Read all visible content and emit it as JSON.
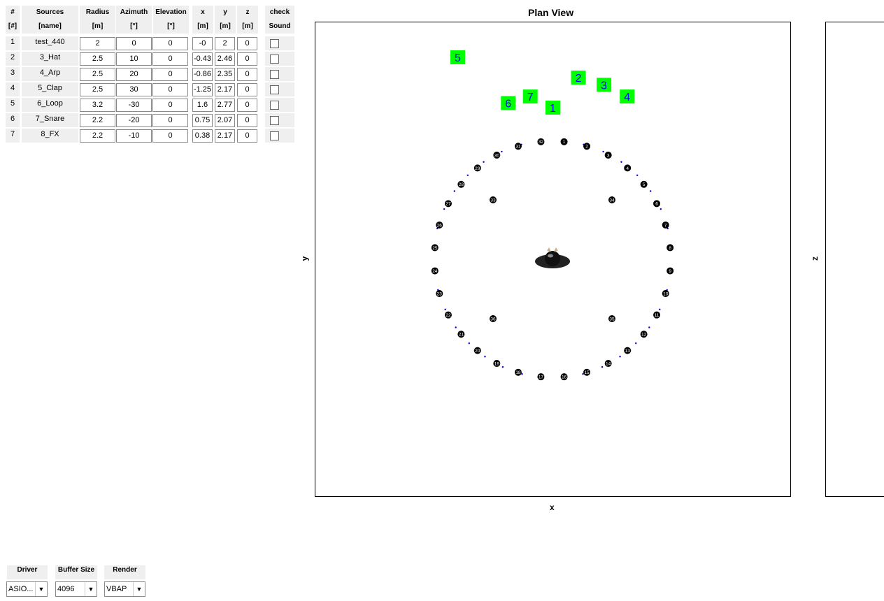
{
  "table": {
    "headers": [
      {
        "top": "#",
        "bottom": "[#]"
      },
      {
        "top": "Sources",
        "bottom": "[name]"
      },
      {
        "top": "Radius",
        "bottom": "[m]"
      },
      {
        "top": "Azimuth",
        "bottom": "[°]"
      },
      {
        "top": "Elevation",
        "bottom": "[°]"
      },
      {
        "top": "x",
        "bottom": "[m]"
      },
      {
        "top": "y",
        "bottom": "[m]"
      },
      {
        "top": "z",
        "bottom": "[m]"
      },
      {
        "top": "check",
        "bottom": "Sound"
      }
    ],
    "rows": [
      {
        "num": "1",
        "name": "test_440",
        "radius": "2",
        "azimuth": "0",
        "elevation": "0",
        "x": "-0",
        "y": "2",
        "z": "0",
        "check": false
      },
      {
        "num": "2",
        "name": "3_Hat",
        "radius": "2.5",
        "azimuth": "10",
        "elevation": "0",
        "x": "-0.43",
        "y": "2.46",
        "z": "0",
        "check": false
      },
      {
        "num": "3",
        "name": "4_Arp",
        "radius": "2.5",
        "azimuth": "20",
        "elevation": "0",
        "x": "-0.86",
        "y": "2.35",
        "z": "0",
        "check": false
      },
      {
        "num": "4",
        "name": "5_Clap",
        "radius": "2.5",
        "azimuth": "30",
        "elevation": "0",
        "x": "-1.25",
        "y": "2.17",
        "z": "0",
        "check": false
      },
      {
        "num": "5",
        "name": "6_Loop",
        "radius": "3.2",
        "azimuth": "-30",
        "elevation": "0",
        "x": "1.6",
        "y": "2.77",
        "z": "0",
        "check": false
      },
      {
        "num": "6",
        "name": "7_Snare",
        "radius": "2.2",
        "azimuth": "-20",
        "elevation": "0",
        "x": "0.75",
        "y": "2.07",
        "z": "0",
        "check": false
      },
      {
        "num": "7",
        "name": "8_FX",
        "radius": "2.2",
        "azimuth": "-10",
        "elevation": "0",
        "x": "0.38",
        "y": "2.17",
        "z": "0",
        "check": false
      }
    ]
  },
  "plan_view": {
    "title": "Plan View",
    "xlabel": "x",
    "ylabel": "y",
    "speaker_count": 36,
    "source_labels": [
      "1",
      "2",
      "3",
      "4",
      "5",
      "6",
      "7"
    ],
    "source_color": "#00ff00",
    "source_text_color": "#0000ff",
    "speaker_color": "#000000",
    "ring_dot_color": "#0000cc"
  },
  "side_view": {
    "ylabel": "z"
  },
  "controls": {
    "driver": {
      "label": "Driver",
      "value": "ASIO..."
    },
    "buffer": {
      "label": "Buffer Size",
      "value": "4096"
    },
    "render": {
      "label": "Render",
      "value": "VBAP"
    }
  }
}
